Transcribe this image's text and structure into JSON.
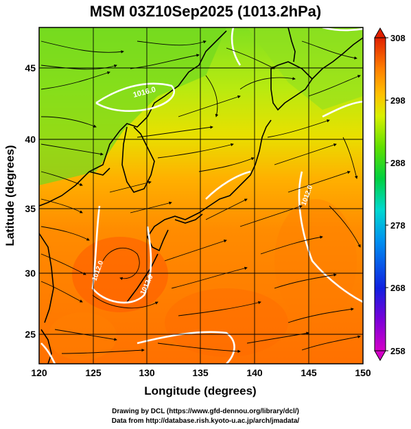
{
  "title": "MSM 03Z10Sep2025 (1013.2hPa)",
  "x_axis": {
    "label": "Longitude (degrees)",
    "ticks": [
      "120",
      "125",
      "130",
      "135",
      "140",
      "145",
      "150"
    ],
    "range": [
      120,
      150
    ]
  },
  "y_axis": {
    "label": "Latitude  (degrees)",
    "ticks": [
      "45",
      "40",
      "35",
      "30",
      "25"
    ],
    "range": [
      22.5,
      47.6
    ]
  },
  "colorbar": {
    "ticks": [
      "308",
      "298",
      "288",
      "278",
      "268",
      "258"
    ],
    "range": [
      258,
      308
    ],
    "colors": [
      "#d400c8",
      "#7a00d8",
      "#1020e0",
      "#0090f0",
      "#00d8d0",
      "#00d040",
      "#60e000",
      "#d8f000",
      "#ffc000",
      "#ff8000",
      "#ff4000",
      "#e02000"
    ]
  },
  "contour_labels": [
    "1016.0",
    "1012.0",
    "1012.0",
    "1012.0"
  ],
  "footer": {
    "line1": "Drawing by DCL (https://www.gfd-dennou.org/library/dcl/)",
    "line2": "Data from http://database.rish.kyoto-u.ac.jp/arch/jmadata/"
  }
}
